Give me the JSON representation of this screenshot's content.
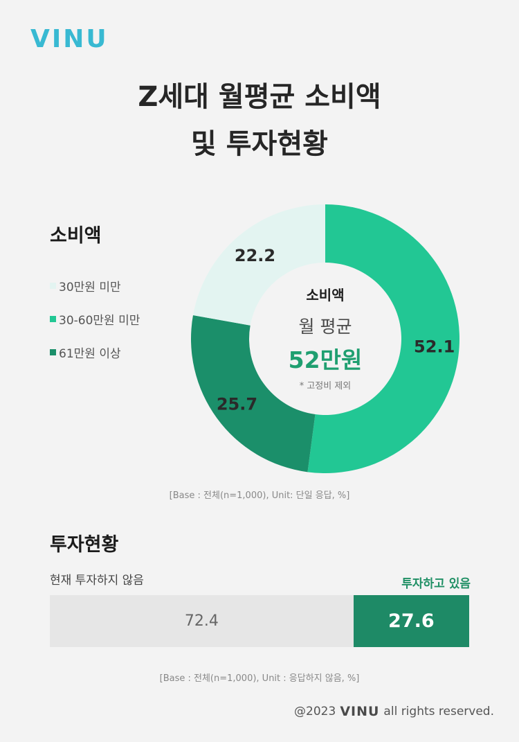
{
  "brand": {
    "logo_text": "VINU",
    "color": "#38b9d2"
  },
  "title": {
    "line1": "Z세대 월평균 소비액",
    "line2": "및 투자현황"
  },
  "spending": {
    "section_title": "소비액",
    "center": {
      "line1": "소비액",
      "line2": "월 평균",
      "line3": "52만원",
      "note": "* 고정비 제외"
    },
    "base_note": "[Base : 전체(n=1,000), Unit: 단일 응답, %]"
  },
  "investment": {
    "section_title": "투자현황",
    "left_label": "현재 투자하지 않음",
    "right_label": "투자하고 있음",
    "base_note": "[Base : 전체(n=1,000), Unit : 응답하지 않음,  %]"
  },
  "footer": {
    "prefix": "@2023",
    "logo_text": "VINU",
    "suffix": "all rights reserved."
  },
  "chart_data": [
    {
      "type": "pie",
      "style": "donut",
      "categories": [
        "30만원 미만",
        "30-60만원 미만",
        "61만원 이상"
      ],
      "values": [
        22.2,
        52.1,
        25.7
      ],
      "value_labels": [
        "22.2",
        "52.1",
        "25.7"
      ],
      "colors": [
        "#e3f4f1",
        "#22c794",
        "#1b8f6a"
      ],
      "legend_placement": "left"
    },
    {
      "type": "bar",
      "orientation": "horizontal-stacked",
      "categories": [
        "현재 투자하지 않음",
        "투자하고 있음"
      ],
      "values": [
        72.4,
        27.6
      ],
      "value_labels": [
        "72.4",
        "27.6"
      ],
      "colors": [
        "#e6e6e6",
        "#1e8a66"
      ]
    }
  ]
}
